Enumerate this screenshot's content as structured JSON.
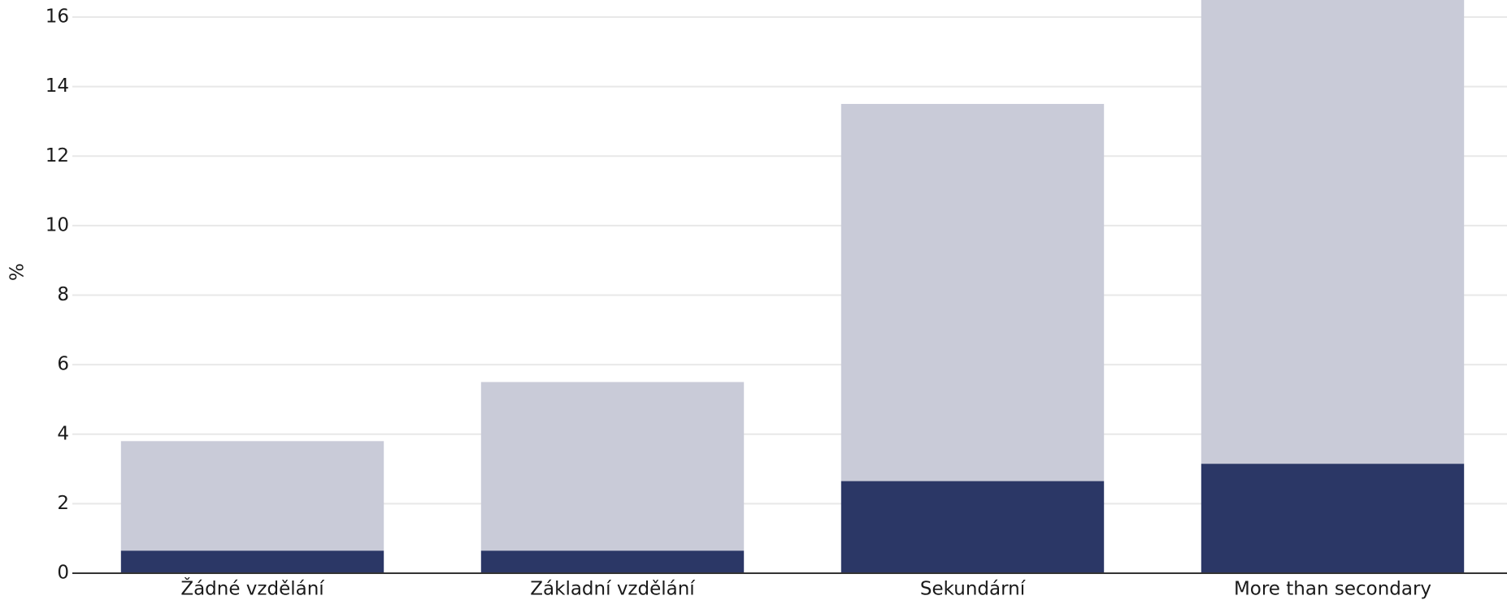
{
  "chart_data": {
    "type": "stacked-bar",
    "y_label": "%",
    "categories": [
      "Žádné vzdělání",
      "Základní vzdělání",
      "Sekundární",
      "More than secondary"
    ],
    "series": [
      {
        "color": "#2b3766",
        "values": [
          0.65,
          0.65,
          2.65,
          3.15
        ]
      },
      {
        "color": "#c9cbd8",
        "values": [
          3.15,
          4.85,
          10.85,
          14.35
        ]
      }
    ],
    "ylim": [
      0,
      16.5
    ],
    "yticks": [
      0,
      2,
      4,
      6,
      8,
      10,
      12,
      14,
      16
    ],
    "grid": true
  }
}
